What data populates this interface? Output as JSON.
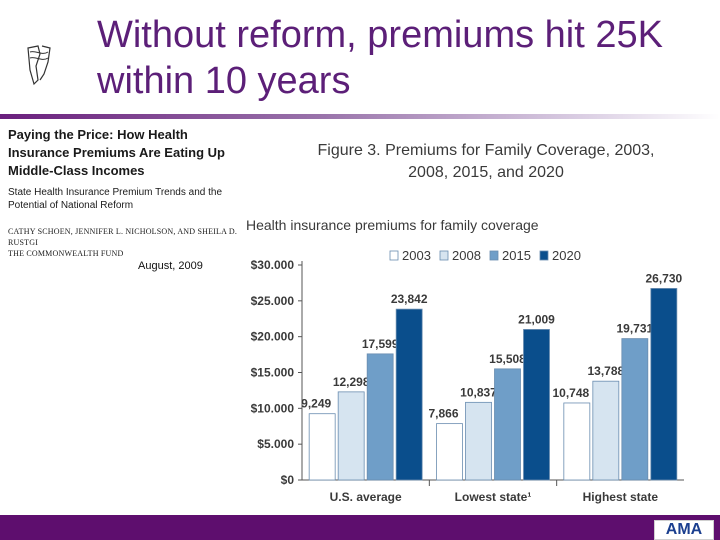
{
  "slide": {
    "title": "Without reform, premiums hit 25K within 10 years"
  },
  "report": {
    "title": "Paying the Price: How Health Insurance Premiums Are Eating Up Middle-Class Incomes",
    "subtitle": "State Health Insurance Premium Trends and the Potential of National Reform",
    "authors": "Cathy Schoen, Jennifer L. Nicholson, and Sheila D. Rustgi",
    "publisher": "The Commonwealth Fund",
    "date": "August, 2009"
  },
  "colors": {
    "accent": "#5e0e6e",
    "series_2003": "#ffffff",
    "series_2008": "#d6e4f0",
    "series_2015": "#6f9ec8",
    "series_2020": "#0a4e8c"
  },
  "logo": {
    "text": "AMA"
  },
  "chart_data": {
    "type": "bar",
    "title": "Figure 3. Premiums for Family Coverage, 2003, 2008, 2015, and 2020",
    "subtitle": "Health insurance premiums for family coverage",
    "categories": [
      "U.S. average",
      "Lowest state¹",
      "Highest state"
    ],
    "series": [
      {
        "name": "2003",
        "values": [
          9249,
          7866,
          10748
        ]
      },
      {
        "name": "2008",
        "values": [
          12298,
          10837,
          13788
        ]
      },
      {
        "name": "2015",
        "values": [
          17599,
          15508,
          19731
        ]
      },
      {
        "name": "2020",
        "values": [
          23842,
          21009,
          26730
        ]
      }
    ],
    "data_labels": [
      [
        "9,249",
        "7,866",
        "10,748"
      ],
      [
        "12,298",
        "10,837",
        "13,788"
      ],
      [
        "17,599",
        "15,508",
        "19,731"
      ],
      [
        "23,842",
        "21,009",
        "26,730"
      ]
    ],
    "y_ticks": [
      0,
      5000,
      10000,
      15000,
      20000,
      25000,
      30000
    ],
    "y_tick_labels": [
      "$0",
      "$5.000",
      "$10.000",
      "$15.000",
      "$20.000",
      "$25.000",
      "$30.000"
    ],
    "ylim": [
      0,
      30000
    ],
    "legend_position": "top-right",
    "grid": false
  }
}
